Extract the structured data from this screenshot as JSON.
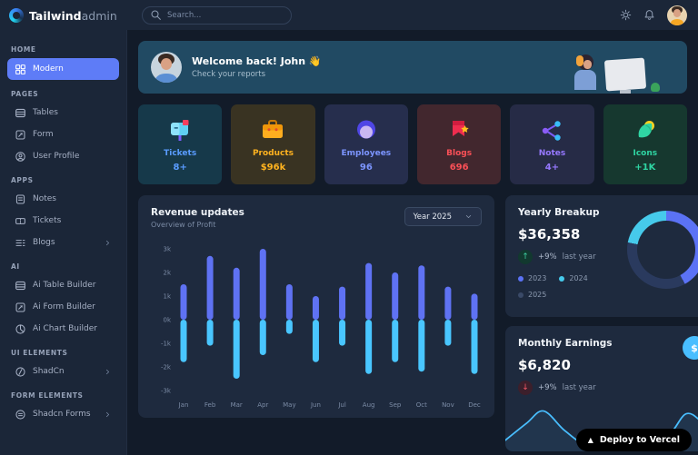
{
  "topbar": {
    "brand_bold": "Tailwind",
    "brand_light": "admin",
    "search_placeholder": "Search..."
  },
  "sidebar": {
    "sections": [
      {
        "title": "HOME",
        "items": [
          {
            "label": "Modern",
            "icon": "grid",
            "active": true
          }
        ]
      },
      {
        "title": "PAGES",
        "items": [
          {
            "label": "Tables",
            "icon": "table"
          },
          {
            "label": "Form",
            "icon": "form"
          },
          {
            "label": "User Profile",
            "icon": "user"
          }
        ]
      },
      {
        "title": "APPS",
        "items": [
          {
            "label": "Notes",
            "icon": "note"
          },
          {
            "label": "Tickets",
            "icon": "ticket"
          },
          {
            "label": "Blogs",
            "icon": "list",
            "chevron": true
          }
        ]
      },
      {
        "title": "AI",
        "items": [
          {
            "label": "Ai Table Builder",
            "icon": "table"
          },
          {
            "label": "Ai Form Builder",
            "icon": "form"
          },
          {
            "label": "Ai Chart Builder",
            "icon": "chart-pie"
          }
        ]
      },
      {
        "title": "UI ELEMENTS",
        "items": [
          {
            "label": "ShadCn",
            "icon": "slash",
            "chevron": true
          }
        ]
      },
      {
        "title": "FORM ELEMENTS",
        "items": [
          {
            "label": "Shadcn Forms",
            "icon": "forms",
            "chevron": true
          }
        ]
      }
    ]
  },
  "welcome": {
    "title": "Welcome back! John 👋",
    "subtitle": "Check your reports"
  },
  "stats": [
    {
      "label": "Tickets",
      "value": "8+",
      "icon": "mailbox",
      "bg": "#16394a",
      "color": "#5a9cff"
    },
    {
      "label": "Products",
      "value": "$96k",
      "icon": "briefcase",
      "bg": "#393322",
      "color": "#ffb31f"
    },
    {
      "label": "Employees",
      "value": "96",
      "icon": "employee-head",
      "bg": "#262e4d",
      "color": "#7c95ff"
    },
    {
      "label": "Blogs",
      "value": "696",
      "icon": "bookmark-star",
      "bg": "#42272e",
      "color": "#fb5057"
    },
    {
      "label": "Notes",
      "value": "4+",
      "icon": "share-nodes",
      "bg": "#262b46",
      "color": "#9678ff"
    },
    {
      "label": "Icons",
      "value": "+1K",
      "icon": "leaf",
      "bg": "#16382f",
      "color": "#2fd5a3"
    }
  ],
  "revenue": {
    "title": "Revenue updates",
    "subtitle": "Overview of Profit",
    "year_select": "Year 2025",
    "chart_data": {
      "type": "bar",
      "categories": [
        "Jan",
        "Feb",
        "Mar",
        "Apr",
        "May",
        "Jun",
        "Jul",
        "Aug",
        "Sep",
        "Oct",
        "Nov",
        "Dec"
      ],
      "series": [
        {
          "name": "positive",
          "color": "#5f72f3",
          "values": [
            1.5,
            2.7,
            2.2,
            3.0,
            1.5,
            1.0,
            1.4,
            2.4,
            2.0,
            2.3,
            1.4,
            1.1
          ]
        },
        {
          "name": "negative",
          "color": "#49c6ff",
          "values": [
            -1.8,
            -1.1,
            -2.5,
            -1.5,
            -0.6,
            -1.8,
            -1.1,
            -2.3,
            -1.8,
            -2.2,
            -1.1,
            -2.3
          ]
        }
      ],
      "ylim": [
        -3,
        3
      ],
      "yticks": [
        "3k",
        "2k",
        "1k",
        "0k",
        "-1k",
        "-2k",
        "-3k"
      ],
      "grid": false,
      "unit": "k"
    }
  },
  "yearly": {
    "title": "Yearly Breakup",
    "value": "$36,358",
    "delta": "+9%",
    "delta_note": "last year",
    "legend": [
      {
        "year": "2023",
        "color": "#5b72f5"
      },
      {
        "year": "2024",
        "color": "#46caeb"
      },
      {
        "year": "2025",
        "color": "#3a4a68"
      }
    ],
    "chart_data": {
      "type": "pie",
      "segments": [
        {
          "label": "2023",
          "percent": 42,
          "color": "#5b72f5"
        },
        {
          "label": "2025",
          "percent": 36,
          "color": "#2a3a5e"
        },
        {
          "label": "2024",
          "percent": 22,
          "color": "#46caeb"
        }
      ]
    }
  },
  "monthly": {
    "title": "Monthly Earnings",
    "value": "$6,820",
    "delta": "+9%",
    "delta_note": "last year",
    "chart_data": {
      "type": "area",
      "color": "#49beff",
      "points": [
        [
          -2,
          50
        ],
        [
          20,
          30
        ],
        [
          36,
          17
        ],
        [
          56,
          38
        ],
        [
          76,
          52
        ],
        [
          96,
          40
        ],
        [
          110,
          43
        ],
        [
          124,
          51
        ],
        [
          140,
          53
        ],
        [
          156,
          40
        ],
        [
          170,
          20
        ],
        [
          184,
          28
        ],
        [
          202,
          52
        ]
      ]
    }
  },
  "deploy": {
    "label": "Deploy to Vercel"
  }
}
